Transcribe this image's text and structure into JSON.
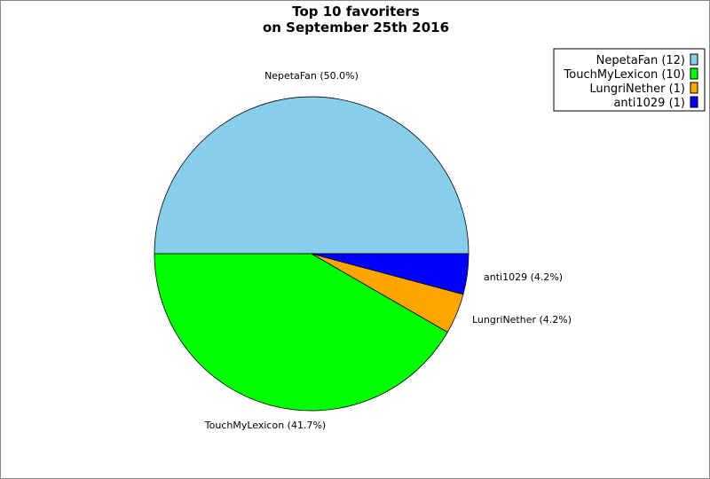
{
  "chart_data": {
    "type": "pie",
    "title": [
      "Top 10 favoriters",
      "on September 25th 2016"
    ],
    "slices": [
      {
        "name": "NepetaFan",
        "count": 12,
        "percent": 50.0,
        "color": "#87ceeb",
        "label": "NepetaFan (50.0%)",
        "legend": "NepetaFan (12)"
      },
      {
        "name": "TouchMyLexicon",
        "count": 10,
        "percent": 41.7,
        "color": "#00ff00",
        "label": "TouchMyLexicon (41.7%)",
        "legend": "TouchMyLexicon (10)"
      },
      {
        "name": "LungriNether",
        "count": 1,
        "percent": 4.2,
        "color": "#ffa500",
        "label": "LungriNether (4.2%)",
        "legend": "LungriNether (1)"
      },
      {
        "name": "anti1029",
        "count": 1,
        "percent": 4.2,
        "color": "#0000ff",
        "label": "anti1029 (4.2%)",
        "legend": "anti1029 (1)"
      }
    ],
    "legend_position": "top-right"
  }
}
